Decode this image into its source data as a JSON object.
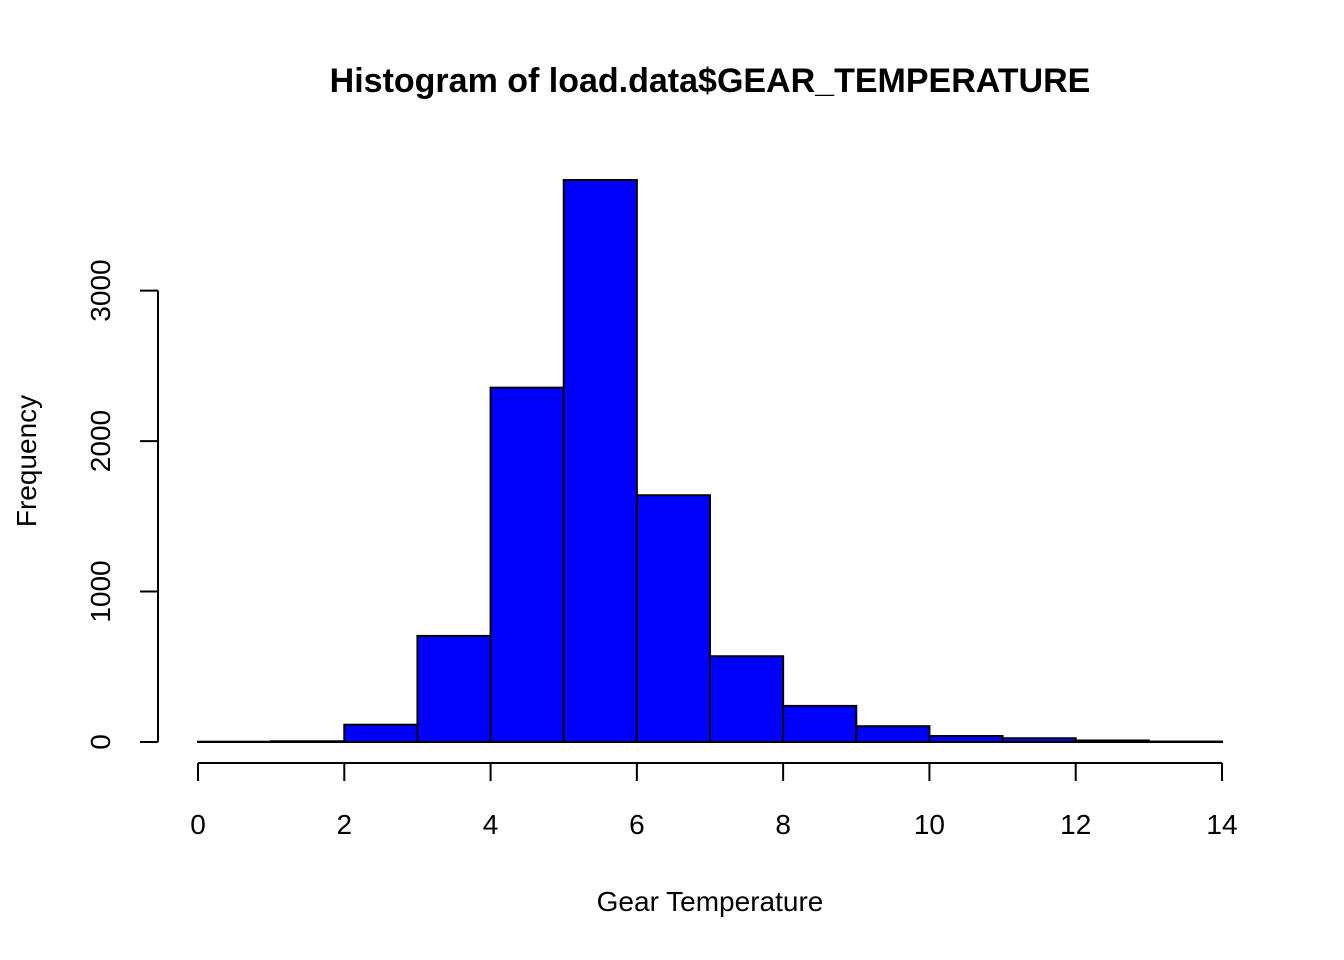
{
  "chart_data": {
    "type": "histogram",
    "title": "Histogram of load.data$GEAR_TEMPERATURE",
    "xlabel": "Gear Temperature",
    "ylabel": "Frequency",
    "bin_edges": [
      0,
      1,
      2,
      3,
      4,
      5,
      6,
      7,
      8,
      9,
      10,
      11,
      12,
      13,
      14
    ],
    "values": [
      2,
      5,
      115,
      705,
      2355,
      3735,
      1640,
      570,
      240,
      105,
      40,
      25,
      10,
      3
    ],
    "xlim": [
      0,
      14
    ],
    "ylim": [
      0,
      3735
    ],
    "x_ticks": [
      0,
      2,
      4,
      6,
      8,
      10,
      12,
      14
    ],
    "y_ticks": [
      0,
      1000,
      2000,
      3000
    ],
    "bar_color": "#0000ff",
    "border_color": "#000000",
    "grid": false,
    "legend": "none"
  }
}
